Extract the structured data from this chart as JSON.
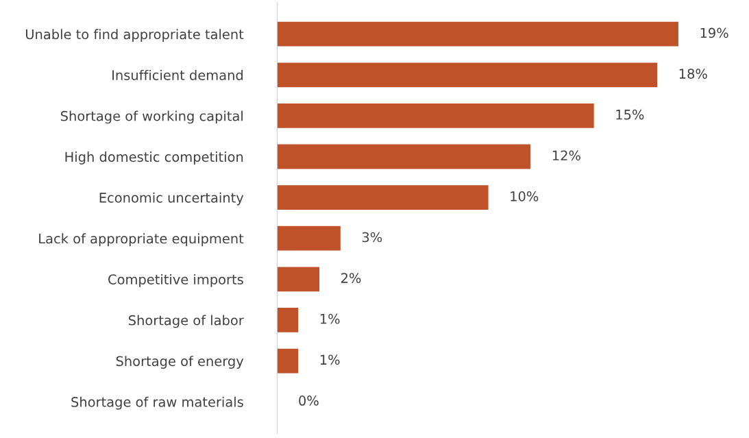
{
  "chart_data": {
    "type": "bar",
    "orientation": "horizontal",
    "categories": [
      "Unable to find appropriate talent",
      "Insufficient demand",
      "Shortage of working capital",
      "High domestic competition",
      "Economic uncertainty",
      "Lack of appropriate equipment",
      "Competitive imports",
      "Shortage of labor",
      "Shortage of energy",
      "Shortage of raw materials"
    ],
    "values": [
      19,
      18,
      15,
      12,
      10,
      3,
      2,
      1,
      1,
      0
    ],
    "value_labels": [
      "19%",
      "18%",
      "15%",
      "12%",
      "10%",
      "3%",
      "2%",
      "1%",
      "1%",
      "0%"
    ],
    "color": "#c0522a",
    "grid": false,
    "legend": false,
    "tick_labels": "y"
  }
}
